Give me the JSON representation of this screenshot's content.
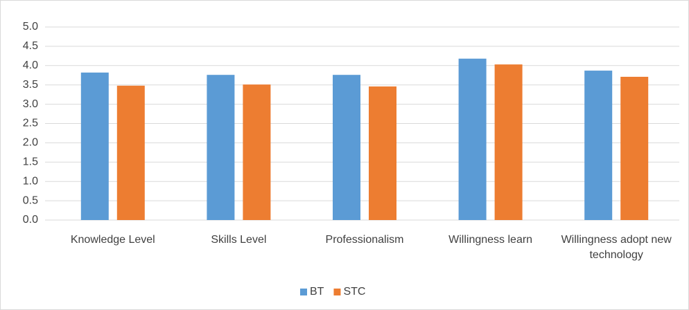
{
  "chart_data": {
    "type": "bar",
    "categories": [
      "Knowledge Level",
      "Skills Level",
      "Professionalism",
      "Willingness learn",
      "Willingness adopt new technology"
    ],
    "series": [
      {
        "name": "BT",
        "color": "#5b9bd5",
        "values": [
          3.82,
          3.76,
          3.76,
          4.18,
          3.87
        ]
      },
      {
        "name": "STC",
        "color": "#ed7d31",
        "values": [
          3.48,
          3.51,
          3.46,
          4.03,
          3.71
        ]
      }
    ],
    "ylim": [
      0,
      5
    ],
    "yticks": [
      {
        "value": 0,
        "label": "0.0"
      },
      {
        "value": 0.5,
        "label": "0.5"
      },
      {
        "value": 1,
        "label": "1.0"
      },
      {
        "value": 1.5,
        "label": "1.5"
      },
      {
        "value": 2,
        "label": "2.0"
      },
      {
        "value": 2.5,
        "label": "2.5"
      },
      {
        "value": 3,
        "label": "3.0"
      },
      {
        "value": 3.5,
        "label": "3.5"
      },
      {
        "value": 4,
        "label": "4.0"
      },
      {
        "value": 4.5,
        "label": "4.5"
      },
      {
        "value": 5,
        "label": "5.0"
      }
    ],
    "grid": true,
    "legend": "bottom"
  }
}
